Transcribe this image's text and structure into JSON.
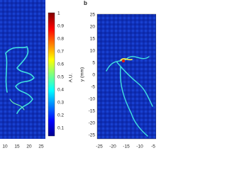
{
  "panel_label": "b",
  "colorbar": {
    "label": "A.U.",
    "ticks": [
      1,
      0.9,
      0.8,
      0.7,
      0.6,
      0.5,
      0.4,
      0.3,
      0.2,
      0.1
    ]
  },
  "left_panel": {
    "x_ticks": [
      10,
      15,
      20,
      25
    ]
  },
  "right_panel": {
    "y_label": "y (mm)",
    "y_ticks": [
      25,
      20,
      15,
      10,
      5,
      0,
      -5,
      -10,
      -15,
      -20,
      -25
    ],
    "x_ticks": [
      -25,
      -20,
      -15,
      -10,
      -5
    ]
  }
}
